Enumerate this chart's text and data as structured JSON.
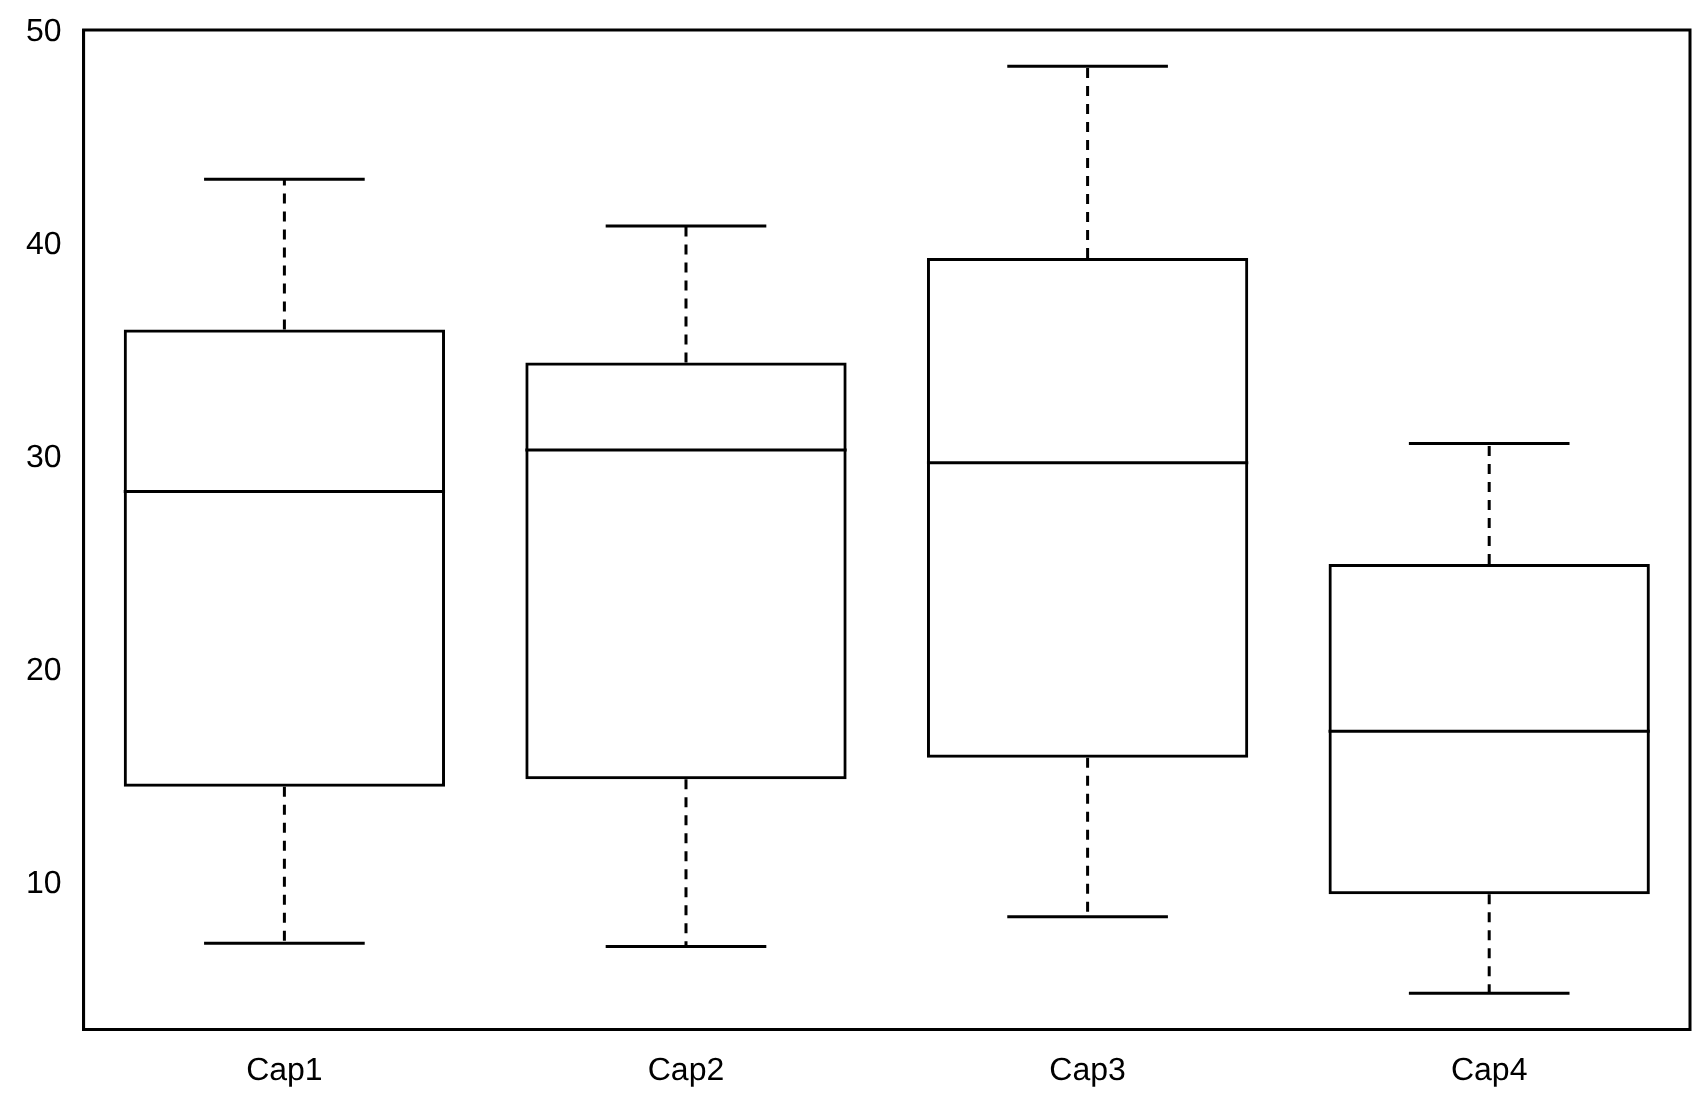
{
  "chart_data": {
    "type": "box",
    "categories": [
      "Cap1",
      "Cap2",
      "Cap3",
      "Cap4"
    ],
    "color": "#000000",
    "boxes": [
      {
        "low": 7.25,
        "q1": 14.6,
        "median": 28.45,
        "q3": 36.05,
        "high": 43.1
      },
      {
        "low": 7.1,
        "q1": 14.95,
        "median": 30.4,
        "q3": 34.5,
        "high": 40.9
      },
      {
        "low": 8.5,
        "q1": 15.95,
        "median": 29.8,
        "q3": 39.4,
        "high": 48.4
      },
      {
        "low": 4.9,
        "q1": 9.55,
        "median": 17.2,
        "q3": 25.05,
        "high": 30.7
      }
    ],
    "ylim": [
      3.2,
      50.1
    ],
    "yticks": [
      10,
      20,
      30,
      40,
      50
    ],
    "grid": false,
    "legend": false
  }
}
